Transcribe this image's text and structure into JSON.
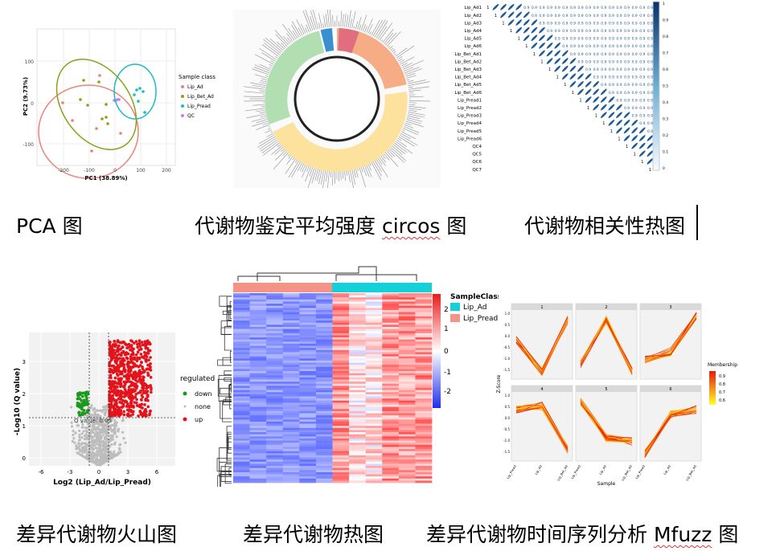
{
  "captions": {
    "pca": "PCA 图",
    "circos_prefix": "代谢物鉴定平均强度 ",
    "circos_word": "circos",
    "circos_suffix": " 图",
    "corr": "代谢物相关性热图",
    "volcano": "差异代谢物火山图",
    "heatmap": "差异代谢物热图",
    "mfuzz_prefix": "差异代谢物时间序列分析 ",
    "mfuzz_word": "Mfuzz",
    "mfuzz_suffix": " 图"
  },
  "pca": {
    "xlabel": "PC1 (38.89%)",
    "ylabel": "PC2 (9.73%)",
    "xticks": [
      "-200",
      "-100",
      "0",
      "100",
      "200"
    ],
    "yticks": [
      "100",
      "0",
      "-100"
    ],
    "legend_title": "Sample class",
    "legend": [
      {
        "label": "Lip_Ad",
        "color": "#e8837a"
      },
      {
        "label": "Lip_Bet_Ad",
        "color": "#8aa11a"
      },
      {
        "label": "Lip_Pread",
        "color": "#1bbcc4"
      },
      {
        "label": "QC",
        "color": "#c77cff"
      }
    ]
  },
  "corr": {
    "rows": [
      "Lip_Ad1",
      "Lip_Ad2",
      "Lip_Ad3",
      "Lip_Ad4",
      "Lip_Ad5",
      "Lip_Ad6",
      "Lip_Bet_Ad1",
      "Lip_Bet_Ad2",
      "Lip_Bet_Ad3",
      "Lip_Bet_Ad4",
      "Lip_Bet_Ad5",
      "Lip_Bet_Ad6",
      "Lip_Pread1",
      "Lip_Pread2",
      "Lip_Pread3",
      "Lip_Pread4",
      "Lip_Pread5",
      "Lip_Pread6",
      "QC4",
      "QC5",
      "QC6",
      "QC7"
    ],
    "scale": [
      "1",
      "0.9",
      "0.8",
      "0.7",
      "0.6",
      "0.5",
      "0.4",
      "0.3",
      "0.2",
      "0.1",
      "0"
    ],
    "diag": "1",
    "offdiag": "0.9"
  },
  "volcano": {
    "xlabel": "Log2 (Lip_Ad/Lip_Pread)",
    "ylabel": "-Log10 (Q value)",
    "xticks": [
      "-6",
      "-3",
      "0",
      "3",
      "6"
    ],
    "yticks": [
      "0",
      "1",
      "2",
      "3"
    ],
    "qlabel": "Q value: 0.05",
    "legend_title": "regulated",
    "legend": [
      {
        "label": "down",
        "color": "#1a9a1a"
      },
      {
        "label": "none",
        "color": "#bdbdbd"
      },
      {
        "label": "up",
        "color": "#e3121b"
      }
    ]
  },
  "heatmap": {
    "legend_title": "SampleClass",
    "classes": [
      {
        "label": "Lip_Ad",
        "color": "#14d0d8"
      },
      {
        "label": "Lip_Pread",
        "color": "#f39487"
      }
    ],
    "scale": [
      "2",
      "1",
      "0",
      "-1",
      "-2"
    ]
  },
  "mfuzz": {
    "panels": [
      "1",
      "2",
      "3",
      "4",
      "5",
      "6"
    ],
    "ylabel": "Z-Score",
    "xlabel": "Sample",
    "xcats": [
      "Lip_Pread",
      "Lip_Ad",
      "Lip_Bet_Ad"
    ],
    "yticks": [
      "1.0",
      "0.5",
      "0.0",
      "-0.5",
      "-1.0",
      "-1.5"
    ],
    "legend_title": "Membership",
    "legend_values": [
      "0.9",
      "0.8",
      "0.7",
      "0.6"
    ]
  }
}
